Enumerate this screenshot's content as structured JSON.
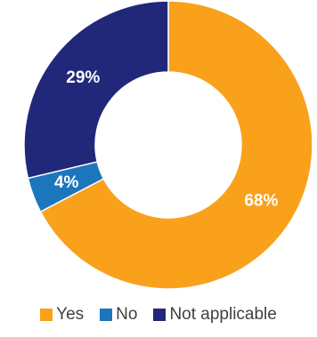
{
  "chart_data": {
    "type": "pie",
    "donut": true,
    "categories": [
      "Yes",
      "No",
      "Not applicable"
    ],
    "values": [
      68,
      4,
      29
    ],
    "labels": [
      "68%",
      "4%",
      "29%"
    ],
    "colors": [
      "#F9A11B",
      "#1B76BC",
      "#21287A"
    ],
    "title": "",
    "legend_position": "bottom"
  }
}
